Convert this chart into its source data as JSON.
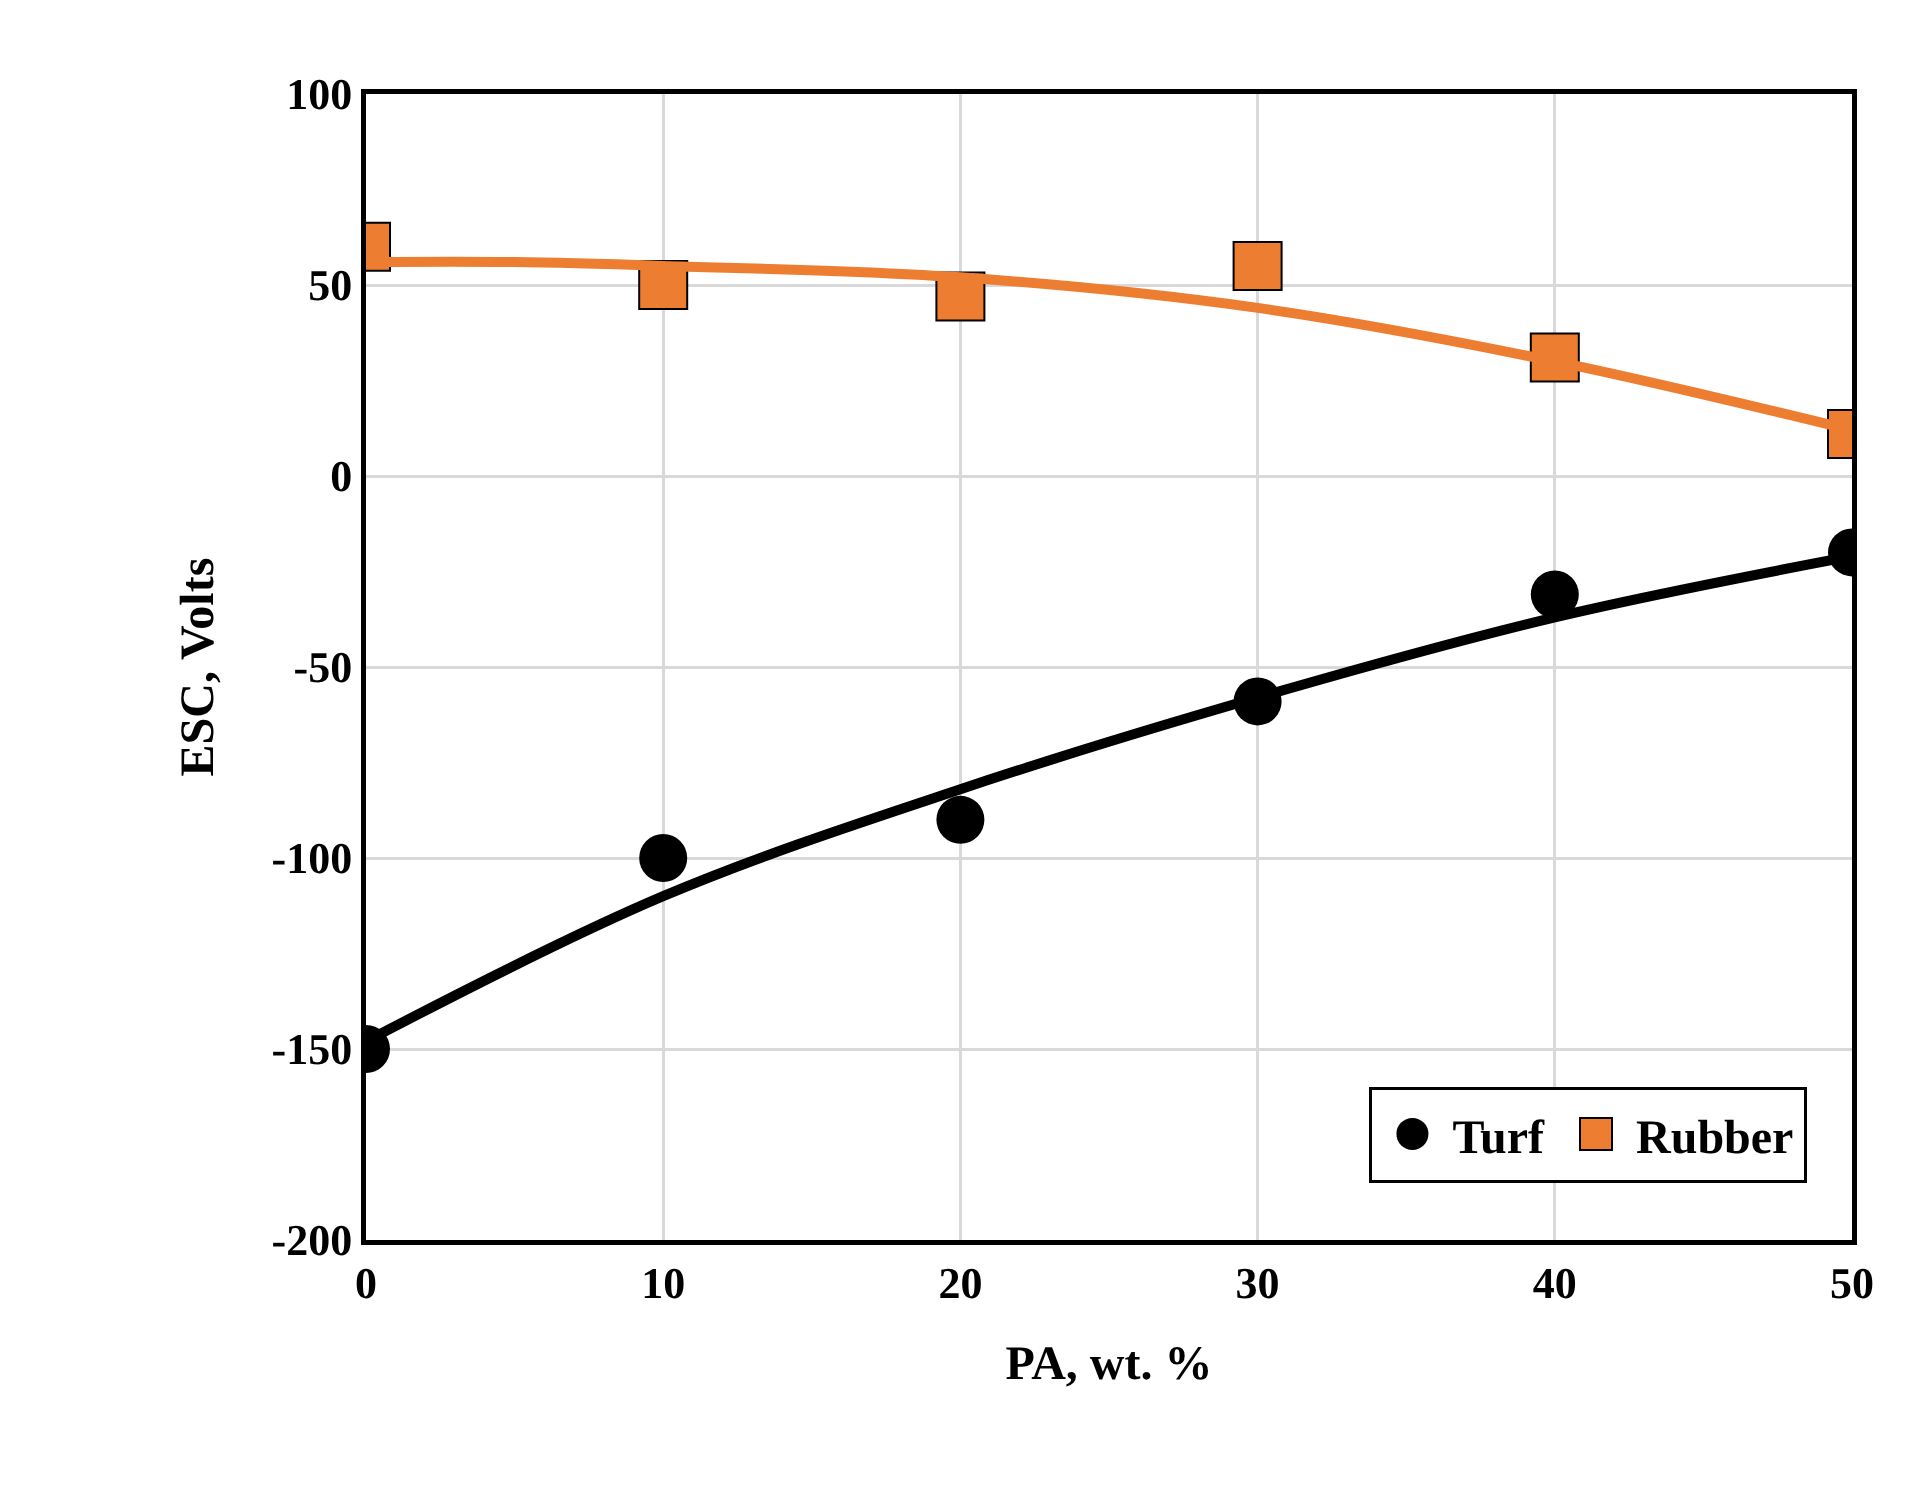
{
  "chart_data": {
    "type": "scatter",
    "xlabel": "PA, wt. %",
    "ylabel": "ESC, Volts",
    "x": [
      0,
      10,
      20,
      30,
      40,
      50
    ],
    "series": [
      {
        "name": "Turf",
        "marker": "circle",
        "color": "#000000",
        "values": [
          -150,
          -100,
          -90,
          -59,
          -31,
          -20
        ]
      },
      {
        "name": "Rubber",
        "marker": "square",
        "color": "#ed7d31",
        "values": [
          60,
          50,
          47,
          55,
          31,
          11
        ]
      },
      {
        "type": "line",
        "color": "#000000",
        "x": [
          0,
          10,
          20,
          30,
          40,
          50
        ],
        "values": [
          -148,
          -110,
          -82,
          -58,
          -37,
          -21
        ]
      },
      {
        "type": "line",
        "color": "#ed7d31",
        "x": [
          0,
          5,
          10,
          20,
          30,
          40,
          50
        ],
        "values": [
          56,
          56,
          55,
          52,
          44,
          30,
          12
        ]
      }
    ],
    "xlim": [
      0,
      50
    ],
    "xticks": [
      0,
      10,
      20,
      30,
      40,
      50
    ],
    "ylim": [
      -200,
      100
    ],
    "yticks": [
      -200,
      -150,
      -100,
      -50,
      0,
      50,
      100
    ],
    "grid": true,
    "legend": "bottom right"
  }
}
